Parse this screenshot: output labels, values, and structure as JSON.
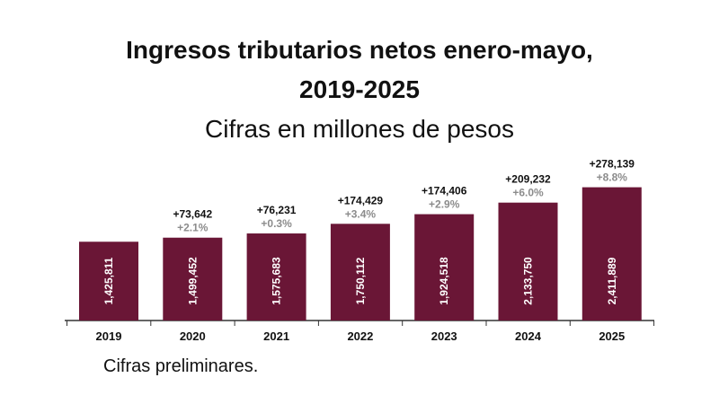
{
  "page": {
    "title_line1": "Ingresos tributarios netos enero-mayo,",
    "title_line2": "2019-2025",
    "subtitle": "Cifras en millones de pesos",
    "footnote": "Cifras preliminares."
  },
  "colors": {
    "bar": "#6a1636",
    "bar_label": "#ffffff",
    "increase_abs": "#111111",
    "increase_pct": "#8c8c8c",
    "axis": "#333333"
  },
  "chart_data": {
    "type": "bar",
    "title": "Ingresos tributarios netos enero-mayo, 2019-2025",
    "subtitle": "Cifras en millones de pesos",
    "xlabel": "",
    "ylabel": "",
    "grid": false,
    "legend": "none",
    "ylim": [
      0,
      2600000
    ],
    "categories": [
      "2019",
      "2020",
      "2021",
      "2022",
      "2023",
      "2024",
      "2025"
    ],
    "values": [
      1425811,
      1499452,
      1575683,
      1750112,
      1924518,
      2133750,
      2411889
    ],
    "value_labels": [
      "1,425,811",
      "1,499,452",
      "1,575,683",
      "1,750,112",
      "1,924,518",
      "2,133,750",
      "2,411,889"
    ],
    "annotations": [
      null,
      {
        "abs": "+73,642",
        "pct": "+2.1%"
      },
      {
        "abs": "+76,231",
        "pct": "+0.3%"
      },
      {
        "abs": "+174,429",
        "pct": "+3.4%"
      },
      {
        "abs": "+174,406",
        "pct": "+2.9%"
      },
      {
        "abs": "+209,232",
        "pct": "+6.0%"
      },
      {
        "abs": "+278,139",
        "pct": "+8.8%"
      }
    ]
  }
}
